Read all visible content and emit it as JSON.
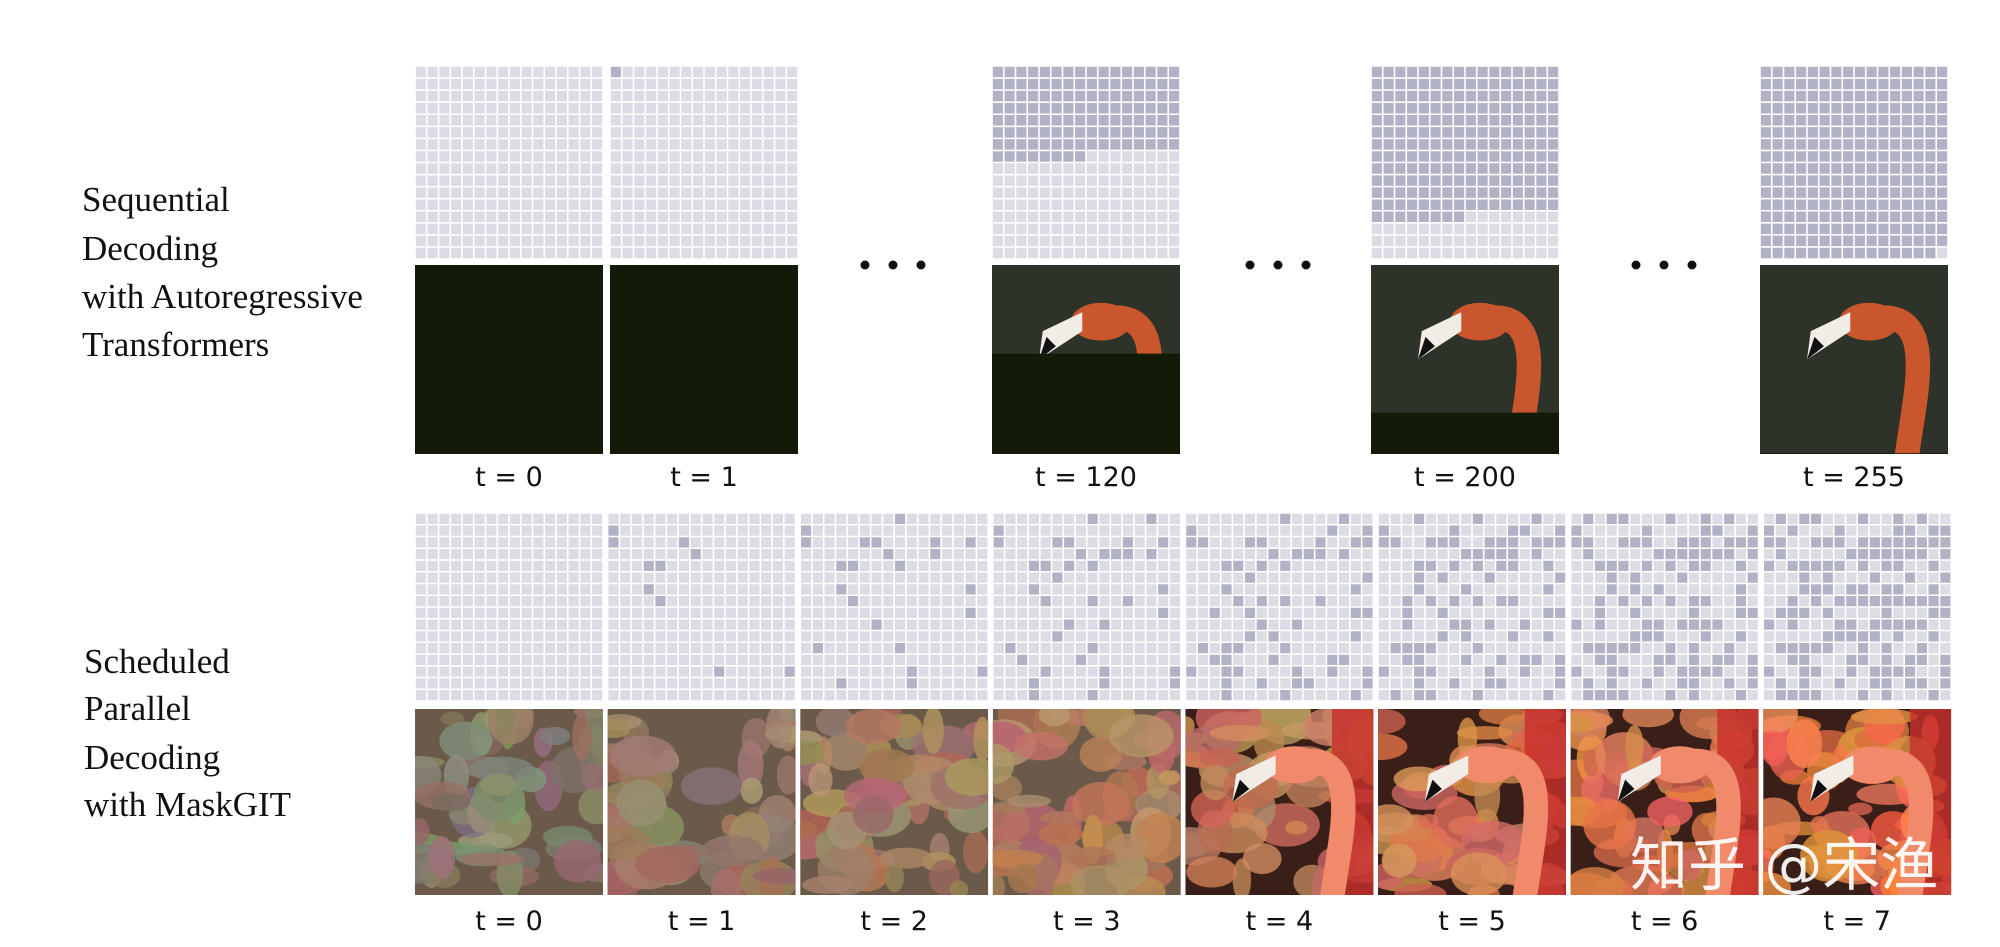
{
  "sequential": {
    "label": [
      "Sequential",
      "Decoding",
      "with Autoregressive",
      "Transformers"
    ],
    "steps": [
      "t = 0",
      "t = 1",
      "t = 120",
      "t = 200",
      "t = 255"
    ]
  },
  "parallel": {
    "label": [
      "Scheduled",
      "Parallel",
      "Decoding",
      "with MaskGIT"
    ],
    "steps": [
      "t = 0",
      "t = 1",
      "t = 2",
      "t = 3",
      "t = 4",
      "t = 5",
      "t = 6",
      "t = 7"
    ]
  },
  "watermark": "知乎 @宋渔"
}
